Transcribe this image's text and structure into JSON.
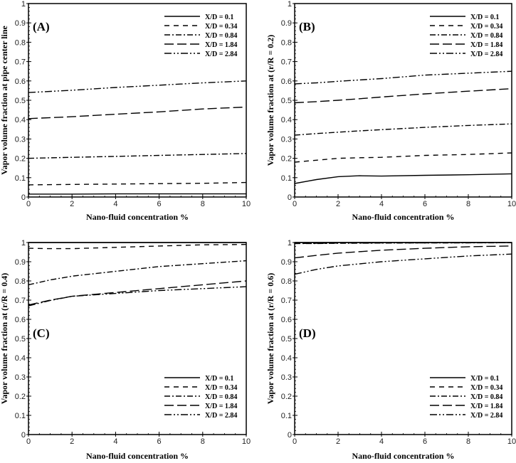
{
  "chart_data": [
    {
      "type": "line",
      "panel_label": "(A)",
      "xlabel": "Nano-fluid concentration %",
      "ylabel": "Vapor volume fraction at pipe center line",
      "xlim": [
        0,
        10
      ],
      "ylim": [
        0,
        1
      ],
      "xticks": [
        0,
        2,
        4,
        6,
        8,
        10
      ],
      "yticks": [
        0,
        0.1,
        0.2,
        0.3,
        0.4,
        0.5,
        0.6,
        0.7,
        0.8,
        0.9,
        1
      ],
      "legend_placement": "top-right",
      "x": [
        0,
        2,
        4,
        6,
        8,
        10
      ],
      "series": [
        {
          "name": "X/D = 0.1",
          "style": "solid",
          "values": [
            0.015,
            0.015,
            0.016,
            0.016,
            0.016,
            0.016
          ]
        },
        {
          "name": "X/D = 0.34",
          "style": "dashed",
          "values": [
            0.063,
            0.065,
            0.067,
            0.069,
            0.071,
            0.075
          ]
        },
        {
          "name": "X/D = 0.84",
          "style": "dash-dot",
          "values": [
            0.2,
            0.205,
            0.21,
            0.215,
            0.22,
            0.225
          ]
        },
        {
          "name": "X/D = 1.84",
          "style": "long-dash",
          "values": [
            0.405,
            0.415,
            0.428,
            0.44,
            0.455,
            0.465
          ]
        },
        {
          "name": "X/D = 2.84",
          "style": "dash-dot-dot",
          "values": [
            0.54,
            0.552,
            0.566,
            0.578,
            0.59,
            0.6
          ]
        }
      ]
    },
    {
      "type": "line",
      "panel_label": "(B)",
      "xlabel": "Nano-fluid concentration %",
      "ylabel": "Vapor volume fraction at (r/R = 0.2)",
      "xlim": [
        0,
        10
      ],
      "ylim": [
        0,
        1
      ],
      "xticks": [
        0,
        2,
        4,
        6,
        8,
        10
      ],
      "yticks": [
        0,
        0.1,
        0.2,
        0.3,
        0.4,
        0.5,
        0.6,
        0.7,
        0.8,
        0.9,
        1
      ],
      "legend_placement": "top-right",
      "x": [
        0,
        1,
        2,
        3,
        4,
        6,
        8,
        10
      ],
      "series": [
        {
          "name": "X/D = 0.1",
          "style": "solid",
          "values": [
            0.07,
            0.09,
            0.105,
            0.11,
            0.108,
            0.112,
            0.115,
            0.12
          ]
        },
        {
          "name": "X/D = 0.34",
          "style": "dashed",
          "values": [
            0.18,
            0.19,
            0.2,
            0.203,
            0.205,
            0.215,
            0.22,
            0.228
          ]
        },
        {
          "name": "X/D = 0.84",
          "style": "dash-dot",
          "values": [
            0.32,
            0.328,
            0.335,
            0.342,
            0.348,
            0.36,
            0.37,
            0.378
          ]
        },
        {
          "name": "X/D = 1.84",
          "style": "long-dash",
          "values": [
            0.487,
            0.493,
            0.5,
            0.508,
            0.517,
            0.533,
            0.547,
            0.56
          ]
        },
        {
          "name": "X/D = 2.84",
          "style": "dash-dot-dot",
          "values": [
            0.585,
            0.59,
            0.598,
            0.605,
            0.612,
            0.63,
            0.64,
            0.65
          ]
        }
      ]
    },
    {
      "type": "line",
      "panel_label": "(C)",
      "xlabel": "Nano-fluid concentration %",
      "ylabel": "Vapor volume fraction at (r/R = 0.4)",
      "xlim": [
        0,
        10
      ],
      "ylim": [
        0,
        1
      ],
      "xticks": [
        0,
        2,
        4,
        6,
        8,
        10
      ],
      "yticks": [
        0,
        0.1,
        0.2,
        0.3,
        0.4,
        0.5,
        0.6,
        0.7,
        0.8,
        0.9,
        1
      ],
      "legend_placement": "bottom-right",
      "x": [
        0,
        1,
        2,
        4,
        6,
        8,
        10
      ],
      "series": [
        {
          "name": "X/D = 0.1",
          "style": "solid",
          "values": [
            1.0,
            1.0,
            1.0,
            1.0,
            1.0,
            1.0,
            1.0
          ]
        },
        {
          "name": "X/D = 0.34",
          "style": "dashed",
          "values": [
            0.97,
            0.968,
            0.968,
            0.975,
            0.982,
            0.988,
            0.99
          ]
        },
        {
          "name": "X/D = 0.84",
          "style": "dash-dot",
          "values": [
            0.78,
            0.805,
            0.825,
            0.85,
            0.875,
            0.89,
            0.905
          ]
        },
        {
          "name": "X/D = 1.84",
          "style": "long-dash",
          "values": [
            0.675,
            0.7,
            0.72,
            0.74,
            0.76,
            0.78,
            0.8
          ]
        },
        {
          "name": "X/D = 2.84",
          "style": "dash-dot-dot",
          "values": [
            0.67,
            0.698,
            0.72,
            0.735,
            0.75,
            0.76,
            0.77
          ]
        }
      ]
    },
    {
      "type": "line",
      "panel_label": "(D)",
      "xlabel": "Nano-fluid concentration %",
      "ylabel": "Vapor volume fraction at (r/R = 0.6)",
      "xlim": [
        0,
        10
      ],
      "ylim": [
        0,
        1
      ],
      "xticks": [
        0,
        2,
        4,
        6,
        8,
        10
      ],
      "yticks": [
        0,
        0.1,
        0.2,
        0.3,
        0.4,
        0.5,
        0.6,
        0.7,
        0.8,
        0.9,
        1
      ],
      "legend_placement": "bottom-right",
      "x": [
        0,
        1,
        2,
        4,
        6,
        8,
        10
      ],
      "series": [
        {
          "name": "X/D = 0.1",
          "style": "solid",
          "values": [
            1.0,
            1.0,
            1.0,
            1.0,
            1.0,
            1.0,
            1.0
          ]
        },
        {
          "name": "X/D = 0.34",
          "style": "dashed",
          "values": [
            0.995,
            0.996,
            0.997,
            0.998,
            0.998,
            0.999,
            0.999
          ]
        },
        {
          "name": "X/D = 0.84",
          "style": "dash-dot",
          "values": [
            0.995,
            0.995,
            0.996,
            0.997,
            0.998,
            0.998,
            0.999
          ]
        },
        {
          "name": "X/D = 1.84",
          "style": "long-dash",
          "values": [
            0.92,
            0.933,
            0.945,
            0.96,
            0.97,
            0.978,
            0.982
          ]
        },
        {
          "name": "X/D = 2.84",
          "style": "dash-dot-dot",
          "values": [
            0.835,
            0.86,
            0.878,
            0.9,
            0.915,
            0.93,
            0.94
          ]
        }
      ]
    }
  ]
}
